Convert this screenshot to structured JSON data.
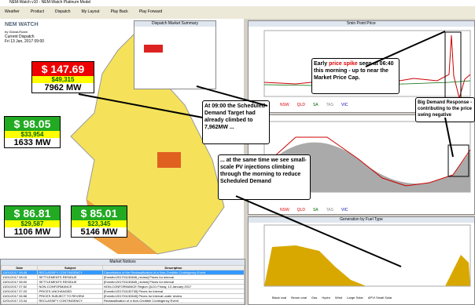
{
  "window": {
    "title": "NEM-Watch v10 - NEM-Watch Platinum Model"
  },
  "toolbar": {
    "items": [
      "Weather",
      "Product",
      "Dispatch",
      "My Layout",
      "Play Back",
      "Play Forward"
    ]
  },
  "logo": {
    "name": "NEM WATCH",
    "by": "by Global-Roam",
    "current": "Current Dispatch",
    "time": "Fri 13 Jan, 2017 09:00"
  },
  "regions": [
    {
      "price": "$ 147.69",
      "value": "$49,315",
      "demand": "7962 MW"
    },
    {
      "price": "$ 98.05",
      "value": "$33,954",
      "demand": "1633 MW"
    },
    {
      "price": "$ 86.81",
      "value": "$29,587",
      "demand": "1106 MW"
    },
    {
      "price": "$ 85.01",
      "value": "$23,345",
      "demand": "5146 MW"
    }
  ],
  "panels": {
    "summary": "Dispatch Market Summary",
    "price": "5min Point Price",
    "demand": "",
    "fuel": "Generation by Fuel Type",
    "notices": "Market Notices"
  },
  "legend": [
    "NSW",
    "QLD",
    "SA",
    "TAS",
    "VIC"
  ],
  "fuel_legend": [
    "Black coal",
    "Brown coal",
    "Gas",
    "Hydro",
    "Wind",
    "Large Solar",
    "APVI Small Solar"
  ],
  "callouts": [
    {
      "pre": "Early ",
      "hl": "price spike",
      "post": " seen at 06:40 this morning - up to near the Market Price Cap."
    },
    {
      "text": "Big Demand Response - contributing to the price swing negative"
    },
    {
      "text": "At 09:00 the Scheduled Demand Target had already climbed to 7,962MW ..."
    },
    {
      "text": "... at the same time we see small-scale PV injections climbing through the morning to reduce Scheduled Demand"
    }
  ],
  "notices": {
    "columns": [
      "Date",
      "Subject",
      "Description"
    ],
    "rows": [
      [
        "13/01/2017 08:45",
        "RECLASSIFY CONTINGENCY",
        "Cancellation of the Reclassification of a Non-Credible Contingency Event"
      ],
      [
        "13/01/2017 08:15",
        "SETTLEMENTS RESIDUE",
        "[EventId:201701130845_review] Prices for interval"
      ],
      [
        "13/01/2017 08:00",
        "SETTLEMENTS RESIDUE",
        "[EventId:201701130845_review] Prices for interval"
      ],
      [
        "13/01/2017 07:52",
        "NON-CONFORMANCE",
        "NON-CONFORMANCE Region QLD1 Friday, 13 January 2017"
      ],
      [
        "13/01/2017 07:20",
        "PRICES UNCHANGED",
        "[EventId:201701130730] Prices for interval"
      ],
      [
        "13/01/2017 06:58",
        "PRICES SUBJECT TO REVIEW",
        "[EventId:201701130640] Prices for interval under review"
      ],
      [
        "12/01/2017 23:34",
        "RECLASSIFY CONTINGENCY",
        "Reclassification of a Non-Credible Contingency Event"
      ],
      [
        "12/01/2017 23:24",
        "RECLASSIFY CONTINGENCY",
        "Cancellation of the Reclassification of a Non-Credible Contingency Event"
      ]
    ]
  }
}
